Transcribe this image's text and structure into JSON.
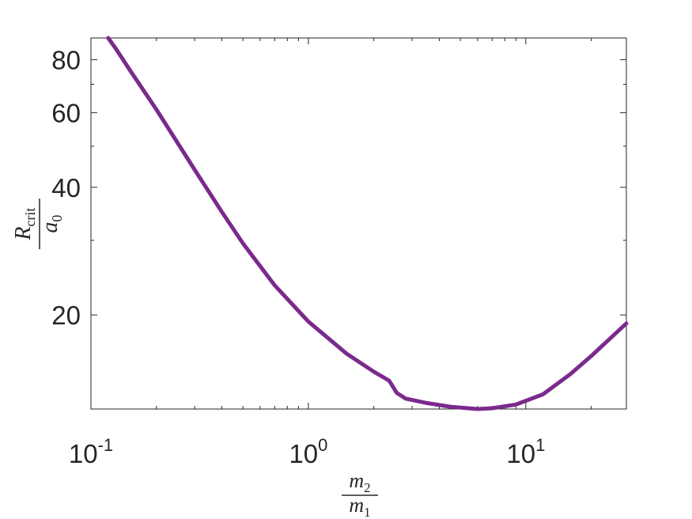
{
  "chart_data": {
    "type": "line",
    "xscale": "log",
    "yscale": "log",
    "xlim": [
      0.1,
      29
    ],
    "ylim": [
      12,
      90
    ],
    "grid": false,
    "legend": "none",
    "xlabel": {
      "num_var": "m",
      "num_sub": "2",
      "den_var": "m",
      "den_sub": "1"
    },
    "ylabel": {
      "num_var": "R",
      "num_sub": "crit",
      "den_var": "a",
      "den_sub": "0"
    },
    "x_ticks": [
      {
        "value": 0.1,
        "base": "10",
        "exp": "-1"
      },
      {
        "value": 1,
        "base": "10",
        "exp": "0"
      },
      {
        "value": 10,
        "base": "10",
        "exp": "1"
      }
    ],
    "y_ticks": [
      {
        "value": 20,
        "label": "20"
      },
      {
        "value": 40,
        "label": "40"
      },
      {
        "value": 60,
        "label": "60"
      },
      {
        "value": 80,
        "label": "80"
      }
    ],
    "series": [
      {
        "color": "#7b2a8c",
        "x": [
          0.12,
          0.13,
          0.15,
          0.2,
          0.3,
          0.4,
          0.5,
          0.7,
          1.0,
          1.5,
          2.0,
          2.35,
          2.55,
          2.8,
          3.5,
          4.5,
          6.0,
          7.0,
          9.0,
          12,
          16,
          20,
          25,
          29
        ],
        "y": [
          90,
          85,
          76,
          61,
          44,
          35,
          29.5,
          23.5,
          19.3,
          16.2,
          14.7,
          14.0,
          13.1,
          12.7,
          12.4,
          12.15,
          12.0,
          12.05,
          12.3,
          13.0,
          14.5,
          16.0,
          17.8,
          19.1
        ]
      }
    ]
  }
}
